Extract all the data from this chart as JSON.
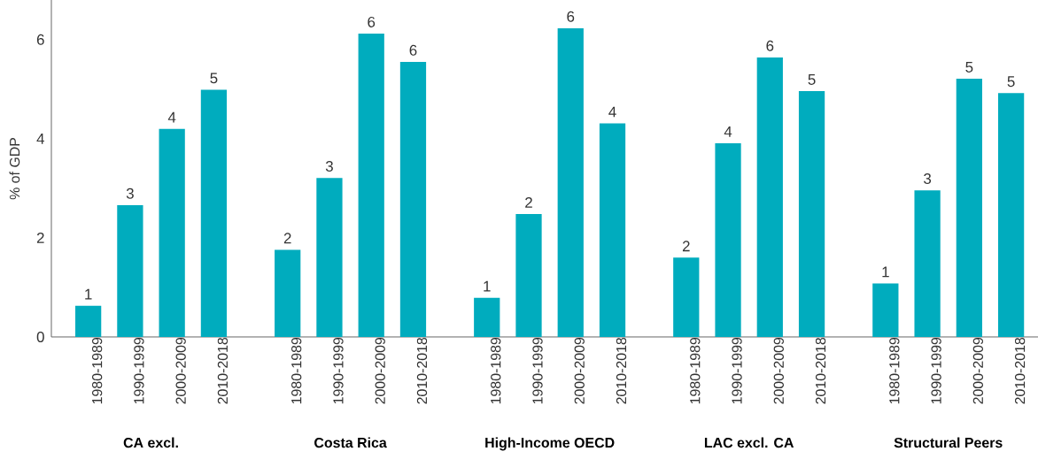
{
  "chart_data": {
    "type": "bar",
    "ylabel": "% of GDP",
    "categories": [
      "CA excl.",
      "Costa Rica",
      "High-Income OECD",
      "LAC excl. CA",
      "Structural Peers"
    ],
    "ylim": [
      0,
      6.8
    ],
    "yticks": [
      0,
      2,
      4,
      6
    ],
    "series": [
      {
        "name": "1980-1989",
        "color": "#00acbe",
        "values": [
          0.63,
          1.76,
          0.79,
          1.6,
          1.08
        ],
        "value_labels": [
          "1",
          "2",
          "1",
          "2",
          "1"
        ]
      },
      {
        "name": "1990-1999",
        "color": "#00acbe",
        "values": [
          2.66,
          3.21,
          2.48,
          3.91,
          2.96
        ],
        "value_labels": [
          "3",
          "3",
          "2",
          "4",
          "3"
        ]
      },
      {
        "name": "2000-2009",
        "color": "#00acbe",
        "values": [
          4.2,
          6.12,
          6.23,
          5.64,
          5.21
        ],
        "value_labels": [
          "4",
          "6",
          "6",
          "6",
          "5"
        ]
      },
      {
        "name": "2010-2018",
        "color": "#00acbe",
        "values": [
          4.99,
          5.55,
          4.31,
          4.96,
          4.92
        ],
        "value_labels": [
          "5",
          "6",
          "4",
          "5",
          "5"
        ]
      }
    ]
  }
}
